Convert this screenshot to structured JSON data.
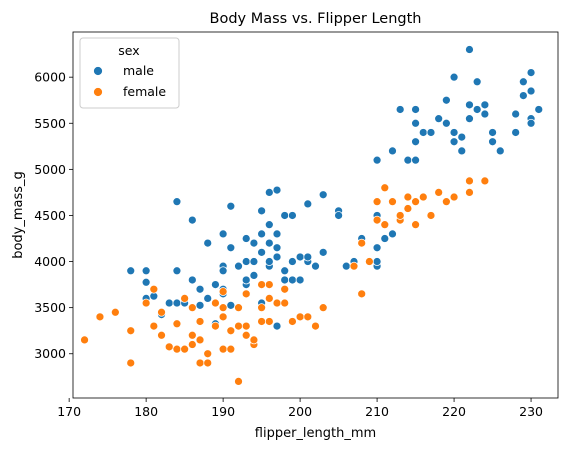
{
  "chart_data": {
    "type": "scatter",
    "title": "Body Mass vs. Flipper Length",
    "xlabel": "flipper_length_mm",
    "ylabel": "body_mass_g",
    "xlim": [
      170.5,
      233.5
    ],
    "ylim": [
      2520,
      6490
    ],
    "xticks": [
      170,
      180,
      190,
      200,
      210,
      220,
      230
    ],
    "yticks": [
      3000,
      3500,
      4000,
      4500,
      5000,
      5500,
      6000
    ],
    "grid": false,
    "legend": {
      "title": "sex",
      "placement": "top-left"
    },
    "series": [
      {
        "name": "male",
        "color": "#1f77b4",
        "points": [
          [
            178,
            3900
          ],
          [
            180,
            3900
          ],
          [
            180,
            3775
          ],
          [
            180,
            3600
          ],
          [
            181,
            3625
          ],
          [
            182,
            3425
          ],
          [
            183,
            3550
          ],
          [
            184,
            3550
          ],
          [
            184,
            3900
          ],
          [
            184,
            4650
          ],
          [
            185,
            3550
          ],
          [
            186,
            4450
          ],
          [
            186,
            3800
          ],
          [
            187,
            3700
          ],
          [
            187,
            3525
          ],
          [
            188,
            3600
          ],
          [
            188,
            4200
          ],
          [
            189,
            3325
          ],
          [
            189,
            3750
          ],
          [
            190,
            4300
          ],
          [
            190,
            3950
          ],
          [
            190,
            3900
          ],
          [
            190,
            3650
          ],
          [
            190,
            3700
          ],
          [
            191,
            3525
          ],
          [
            191,
            4600
          ],
          [
            191,
            4600
          ],
          [
            191,
            4150
          ],
          [
            192,
            3950
          ],
          [
            193,
            4000
          ],
          [
            193,
            4250
          ],
          [
            193,
            3750
          ],
          [
            193,
            3800
          ],
          [
            194,
            4000
          ],
          [
            194,
            4200
          ],
          [
            194,
            3850
          ],
          [
            195,
            4100
          ],
          [
            195,
            4300
          ],
          [
            195,
            4550
          ],
          [
            195,
            3550
          ],
          [
            196,
            4400
          ],
          [
            196,
            3950
          ],
          [
            196,
            4200
          ],
          [
            196,
            4000
          ],
          [
            196,
            4750
          ],
          [
            197,
            4300
          ],
          [
            197,
            4150
          ],
          [
            197,
            3300
          ],
          [
            197,
            4775
          ],
          [
            197,
            4050
          ],
          [
            198,
            4500
          ],
          [
            198,
            3800
          ],
          [
            198,
            3900
          ],
          [
            199,
            4500
          ],
          [
            199,
            4000
          ],
          [
            199,
            3800
          ],
          [
            200,
            3800
          ],
          [
            200,
            4050
          ],
          [
            201,
            4000
          ],
          [
            201,
            4050
          ],
          [
            201,
            4625
          ],
          [
            202,
            3950
          ],
          [
            203,
            4100
          ],
          [
            203,
            4725
          ],
          [
            205,
            4550
          ],
          [
            205,
            4500
          ],
          [
            206,
            3950
          ],
          [
            207,
            4000
          ],
          [
            208,
            4250
          ],
          [
            210,
            3950
          ],
          [
            210,
            4150
          ],
          [
            210,
            4000
          ],
          [
            210,
            4500
          ],
          [
            210,
            5100
          ],
          [
            211,
            4250
          ],
          [
            212,
            4300
          ],
          [
            212,
            5200
          ],
          [
            213,
            5650
          ],
          [
            214,
            5100
          ],
          [
            215,
            5100
          ],
          [
            215,
            5300
          ],
          [
            215,
            5500
          ],
          [
            215,
            5650
          ],
          [
            216,
            5400
          ],
          [
            217,
            5400
          ],
          [
            218,
            5550
          ],
          [
            219,
            5750
          ],
          [
            219,
            5500
          ],
          [
            220,
            5400
          ],
          [
            220,
            5300
          ],
          [
            220,
            6000
          ],
          [
            221,
            5200
          ],
          [
            221,
            5350
          ],
          [
            222,
            5550
          ],
          [
            222,
            6300
          ],
          [
            222,
            5700
          ],
          [
            223,
            5650
          ],
          [
            223,
            5950
          ],
          [
            224,
            5600
          ],
          [
            224,
            5700
          ],
          [
            225,
            5400
          ],
          [
            225,
            5300
          ],
          [
            226,
            5200
          ],
          [
            228,
            5400
          ],
          [
            228,
            5600
          ],
          [
            229,
            5950
          ],
          [
            229,
            5800
          ],
          [
            230,
            5550
          ],
          [
            230,
            5850
          ],
          [
            230,
            5500
          ],
          [
            230,
            6050
          ],
          [
            231,
            5650
          ]
        ]
      },
      {
        "name": "female",
        "color": "#ff7f0e",
        "points": [
          [
            172,
            3150
          ],
          [
            174,
            3400
          ],
          [
            176,
            3450
          ],
          [
            178,
            3250
          ],
          [
            178,
            2900
          ],
          [
            180,
            3550
          ],
          [
            181,
            3700
          ],
          [
            181,
            3300
          ],
          [
            182,
            3200
          ],
          [
            182,
            3450
          ],
          [
            183,
            3075
          ],
          [
            184,
            3050
          ],
          [
            184,
            3325
          ],
          [
            185,
            3600
          ],
          [
            185,
            3050
          ],
          [
            186,
            3200
          ],
          [
            186,
            3100
          ],
          [
            186,
            3500
          ],
          [
            187,
            2900
          ],
          [
            187,
            3150
          ],
          [
            187,
            3350
          ],
          [
            188,
            2900
          ],
          [
            188,
            3000
          ],
          [
            189,
            3300
          ],
          [
            189,
            3550
          ],
          [
            190,
            3050
          ],
          [
            190,
            3400
          ],
          [
            190,
            3500
          ],
          [
            190,
            3675
          ],
          [
            191,
            3250
          ],
          [
            191,
            3050
          ],
          [
            192,
            2700
          ],
          [
            192,
            3300
          ],
          [
            192,
            3500
          ],
          [
            193,
            3200
          ],
          [
            193,
            3300
          ],
          [
            193,
            3650
          ],
          [
            194,
            3100
          ],
          [
            194,
            3150
          ],
          [
            195,
            3350
          ],
          [
            195,
            3500
          ],
          [
            195,
            3750
          ],
          [
            196,
            3600
          ],
          [
            196,
            3350
          ],
          [
            196,
            3750
          ],
          [
            197,
            3550
          ],
          [
            198,
            3550
          ],
          [
            198,
            3700
          ],
          [
            199,
            3350
          ],
          [
            200,
            3400
          ],
          [
            201,
            3400
          ],
          [
            202,
            3300
          ],
          [
            203,
            3500
          ],
          [
            207,
            3950
          ],
          [
            208,
            3650
          ],
          [
            208,
            4200
          ],
          [
            209,
            4000
          ],
          [
            210,
            4450
          ],
          [
            210,
            4650
          ],
          [
            211,
            4400
          ],
          [
            211,
            4800
          ],
          [
            212,
            4650
          ],
          [
            213,
            4450
          ],
          [
            213,
            4500
          ],
          [
            214,
            4700
          ],
          [
            214,
            4575
          ],
          [
            215,
            4650
          ],
          [
            215,
            4400
          ],
          [
            216,
            4700
          ],
          [
            217,
            4500
          ],
          [
            218,
            4750
          ],
          [
            219,
            4650
          ],
          [
            220,
            4700
          ],
          [
            222,
            4750
          ],
          [
            222,
            4875
          ],
          [
            224,
            4875
          ]
        ]
      }
    ]
  }
}
